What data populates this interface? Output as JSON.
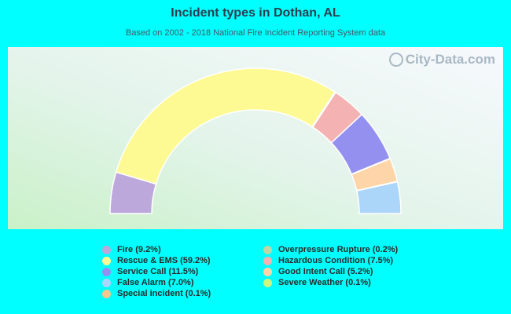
{
  "header": {
    "title": "Incident types in Dothan, AL",
    "subtitle": "Based on 2002 - 2018 National Fire Incident Reporting System data"
  },
  "watermark": {
    "text": "City-Data.com",
    "icon": "magnifier-icon"
  },
  "chart_data": {
    "type": "pie",
    "style": "half-donut",
    "slices": [
      {
        "label": "Fire (9.2%)",
        "value": 9.2,
        "color": "#bda8dc"
      },
      {
        "label": "Rescue & EMS (59.2%)",
        "value": 59.2,
        "color": "#fdf993"
      },
      {
        "label": "Service Call (11.5%)",
        "value": 11.5,
        "color": "#9390f0"
      },
      {
        "label": "False Alarm (7.0%)",
        "value": 7.0,
        "color": "#acd5fa"
      },
      {
        "label": "Special incident (0.1%)",
        "value": 0.1,
        "color": "#f2c78a"
      },
      {
        "label": "Overpressure Rupture (0.2%)",
        "value": 0.2,
        "color": "#bfd6a6"
      },
      {
        "label": "Hazardous Condition (7.5%)",
        "value": 7.5,
        "color": "#f5b2b2"
      },
      {
        "label": "Good Intent Call (5.2%)",
        "value": 5.2,
        "color": "#fed5a8"
      },
      {
        "label": "Severe Weather (0.1%)",
        "value": 0.1,
        "color": "#cdf57f"
      }
    ],
    "arc_order": [
      "Fire (9.2%)",
      "Rescue & EMS (59.2%)",
      "Overpressure Rupture (0.2%)",
      "Hazardous Condition (7.5%)",
      "Service Call (11.5%)",
      "Severe Weather (0.1%)",
      "Good Intent Call (5.2%)",
      "Special incident (0.1%)",
      "False Alarm (7.0%)"
    ]
  }
}
